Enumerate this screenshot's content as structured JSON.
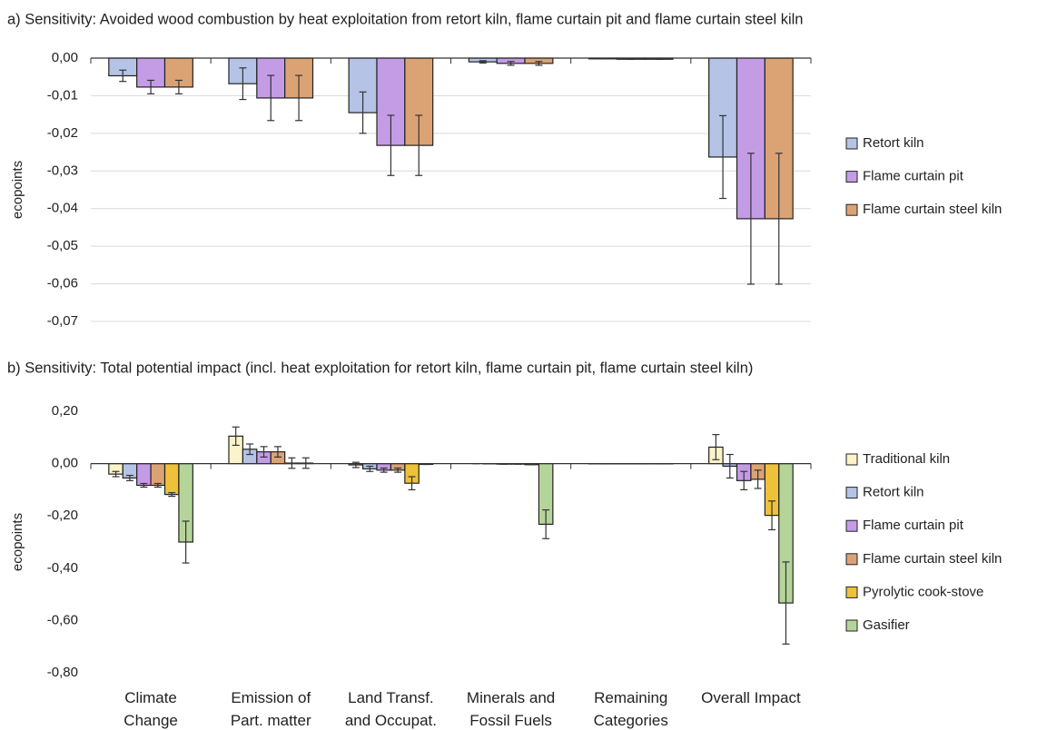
{
  "chart_data": [
    {
      "type": "bar",
      "title": "a) Sensitivity: Avoided wood combustion by heat exploitation from retort kiln, flame curtain pit and flame curtain steel kiln",
      "y_label": "ecopoints",
      "categories": [
        null,
        null,
        null,
        null,
        null,
        null
      ],
      "ylim": [
        -0.07,
        0
      ],
      "yticks": [
        {
          "value": 0,
          "label": "0,00"
        },
        {
          "value": -0.01,
          "label": "-0,01"
        },
        {
          "value": -0.02,
          "label": "-0,02"
        },
        {
          "value": -0.03,
          "label": "-0,03"
        },
        {
          "value": -0.04,
          "label": "-0,04"
        },
        {
          "value": -0.05,
          "label": "-0,05"
        },
        {
          "value": -0.06,
          "label": "-0,06"
        },
        {
          "value": -0.07,
          "label": "-0,07"
        }
      ],
      "grid": true,
      "legend": "right",
      "series": [
        {
          "name": "Retort kiln",
          "color": "#b4c3e6",
          "values": [
            -0.0047,
            -0.0068,
            -0.0145,
            -0.001,
            -0.0002,
            -0.0263
          ],
          "errors": [
            0.0015,
            0.0042,
            0.0055,
            0.0003,
            0,
            0.011
          ]
        },
        {
          "name": "Flame curtain pit",
          "color": "#c49ce6",
          "values": [
            -0.0077,
            -0.0106,
            -0.0232,
            -0.0014,
            -0.0003,
            -0.0427
          ],
          "errors": [
            0.0018,
            0.006,
            0.008,
            0.0005,
            0,
            0.0174
          ]
        },
        {
          "name": "Flame curtain steel kiln",
          "color": "#dba374",
          "values": [
            -0.0077,
            -0.0106,
            -0.0232,
            -0.0014,
            -0.0003,
            -0.0427
          ],
          "errors": [
            0.0018,
            0.006,
            0.008,
            0.0005,
            0,
            0.0174
          ]
        }
      ]
    },
    {
      "type": "bar",
      "title": "b) Sensitivity: Total potential impact (incl. heat exploitation for retort kiln, flame curtain pit, flame curtain steel kiln)",
      "y_label": "ecopoints",
      "categories": [
        "Climate Change",
        "Emission of Part. matter",
        "Land Transf. and Occupat.",
        "Minerals and Fossil Fuels",
        "Remaining Categories",
        "Overall Impact"
      ],
      "ylim": [
        -0.8,
        0.2
      ],
      "yticks": [
        {
          "value": 0.2,
          "label": "0,20"
        },
        {
          "value": 0,
          "label": "0,00"
        },
        {
          "value": -0.2,
          "label": "-0,20"
        },
        {
          "value": -0.4,
          "label": "-0,40"
        },
        {
          "value": -0.6,
          "label": "-0,60"
        },
        {
          "value": -0.8,
          "label": "-0,80"
        }
      ],
      "grid": false,
      "legend": "right",
      "series": [
        {
          "name": "Traditional kiln",
          "color": "#fbf3c9",
          "values": [
            -0.04,
            0.105,
            -0.005,
            0,
            -0.001,
            0.063
          ],
          "errors": [
            0.01,
            0.035,
            0.01,
            0,
            0,
            0.048
          ]
        },
        {
          "name": "Retort kiln",
          "color": "#b4c3e6",
          "values": [
            -0.055,
            0.055,
            -0.02,
            -0.001,
            -0.001,
            -0.01
          ],
          "errors": [
            0.01,
            0.02,
            0.01,
            0,
            0,
            0.045
          ]
        },
        {
          "name": "Flame curtain pit",
          "color": "#c49ce6",
          "values": [
            -0.083,
            0.045,
            -0.025,
            -0.002,
            -0.001,
            -0.065
          ],
          "errors": [
            0.007,
            0.02,
            0.008,
            0,
            0,
            0.035
          ]
        },
        {
          "name": "Flame curtain steel kiln",
          "color": "#dba374",
          "values": [
            -0.083,
            0.045,
            -0.025,
            -0.002,
            -0.001,
            -0.06
          ],
          "errors": [
            0.007,
            0.02,
            0.008,
            0,
            0,
            0.035
          ]
        },
        {
          "name": "Pyrolytic cook-stove",
          "color": "#edc23a",
          "values": [
            -0.118,
            0.002,
            -0.075,
            -0.004,
            -0.001,
            -0.198
          ],
          "errors": [
            0.007,
            0.02,
            0.025,
            0,
            0,
            0.055
          ]
        },
        {
          "name": "Gasifier",
          "color": "#b5d49a",
          "values": [
            -0.3,
            0.002,
            -0.003,
            -0.232,
            -0.001,
            -0.533
          ],
          "errors": [
            0.08,
            0.02,
            0,
            0.055,
            0,
            0.157
          ]
        }
      ]
    }
  ]
}
